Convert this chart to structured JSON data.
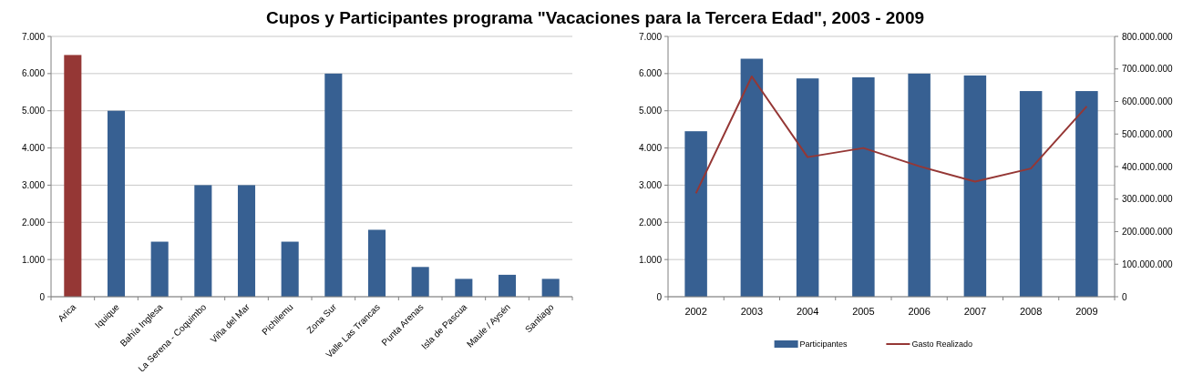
{
  "chart_data": [
    {
      "type": "bar",
      "title": "Cupos y Participantes programa \"Vacaciones para la Tercera Edad\", 2003 - 2009",
      "categories": [
        "Arica",
        "Iquique",
        "Bahía Inglesa",
        "La Serena - Coquimbo",
        "Viña del Mar",
        "Pichilemu",
        "Zona Sur",
        "Valle Las Trancas",
        "Punta Arenas",
        "Isla de Pascua",
        "Maule / Aysén",
        "Santiago"
      ],
      "values": [
        6500,
        5000,
        1480,
        3000,
        3000,
        1480,
        6000,
        1800,
        800,
        480,
        590,
        480
      ],
      "colors": [
        "#953735",
        "#376092",
        "#376092",
        "#376092",
        "#376092",
        "#376092",
        "#376092",
        "#376092",
        "#376092",
        "#376092",
        "#376092",
        "#376092"
      ],
      "ylim": [
        0,
        7000
      ],
      "yticks": [
        0,
        {
          "value": 1000,
          "label": "1.000"
        },
        {
          "value": 2000,
          "label": "2.000"
        },
        {
          "value": 3000,
          "label": "3.000"
        },
        {
          "value": 4000,
          "label": "4.000"
        },
        {
          "value": 5000,
          "label": "5.000"
        },
        {
          "value": 6000,
          "label": "6.000"
        },
        {
          "value": 7000,
          "label": "7.000"
        }
      ],
      "grid": "y",
      "legend": false
    },
    {
      "type": "bar",
      "categories": [
        "2002",
        "2003",
        "2004",
        "2005",
        "2006",
        "2007",
        "2008",
        "2009"
      ],
      "series": [
        {
          "name": "Participantes",
          "color": "#376092",
          "values": [
            4450,
            6400,
            5870,
            5900,
            6000,
            5950,
            5530,
            5530
          ]
        },
        {
          "name": "Gasto Realizado",
          "type": "line",
          "axis": "y2",
          "color": "#953735",
          "values": [
            318000000,
            677000000,
            429000000,
            457000000,
            401000000,
            354000000,
            394000000,
            585000000
          ]
        }
      ],
      "ylim": [
        0,
        7000
      ],
      "yticks": [
        0,
        {
          "value": 1000,
          "label": "1.000"
        },
        {
          "value": 2000,
          "label": "2.000"
        },
        {
          "value": 3000,
          "label": "3.000"
        },
        {
          "value": 4000,
          "label": "4.000"
        },
        {
          "value": 5000,
          "label": "5.000"
        },
        {
          "value": 6000,
          "label": "6.000"
        },
        {
          "value": 7000,
          "label": "7.000"
        }
      ],
      "y2lim": [
        0,
        800000000
      ],
      "y2ticks": [
        0,
        {
          "value": 100000000,
          "label": "100.000.000"
        },
        {
          "value": 200000000,
          "label": "200.000.000"
        },
        {
          "value": 300000000,
          "label": "300.000.000"
        },
        {
          "value": 400000000,
          "label": "400.000.000"
        },
        {
          "value": 500000000,
          "label": "500.000.000"
        },
        {
          "value": 600000000,
          "label": "600.000.000"
        },
        {
          "value": 700000000,
          "label": "700.000.000"
        },
        {
          "value": 800000000,
          "label": "800.000.000"
        }
      ],
      "grid": "y",
      "legend": "bottom",
      "marker": "none"
    }
  ]
}
